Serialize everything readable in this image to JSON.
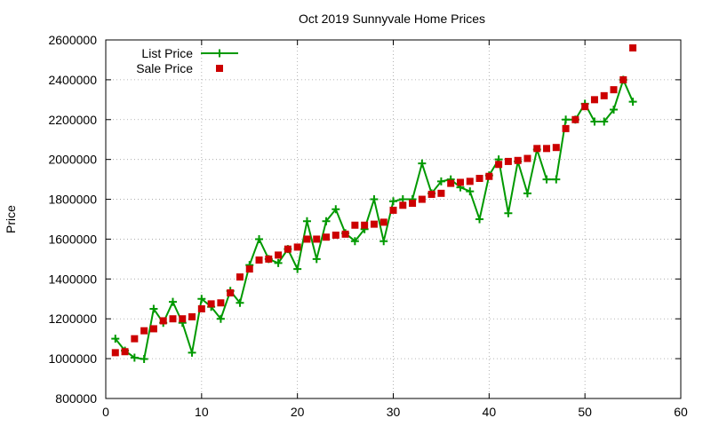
{
  "chart_data": {
    "type": "line",
    "title": "Oct 2019 Sunnyvale Home Prices",
    "xlabel": "",
    "ylabel": "Price",
    "xlim": [
      0,
      60
    ],
    "ylim": [
      800000,
      2600000
    ],
    "x_ticks": [
      0,
      10,
      20,
      30,
      40,
      50,
      60
    ],
    "y_ticks": [
      800000,
      1000000,
      1200000,
      1400000,
      1600000,
      1800000,
      2000000,
      2200000,
      2400000,
      2600000
    ],
    "x_tick_labels": [
      "0",
      "10",
      "20",
      "30",
      "40",
      "50",
      "60"
    ],
    "y_tick_labels": [
      "800000",
      "1000000",
      "1200000",
      "1400000",
      "1600000",
      "1800000",
      "2000000",
      "2200000",
      "2400000",
      "2600000"
    ],
    "grid": true,
    "legend_position": "top-left",
    "series": [
      {
        "name": "List Price",
        "style": "line-with-plus",
        "color": "#009900",
        "x": [
          1,
          2,
          3,
          4,
          5,
          6,
          7,
          8,
          9,
          10,
          11,
          12,
          13,
          14,
          15,
          16,
          17,
          18,
          19,
          20,
          21,
          22,
          23,
          24,
          25,
          26,
          27,
          28,
          29,
          30,
          31,
          32,
          33,
          34,
          35,
          36,
          37,
          38,
          39,
          40,
          41,
          42,
          43,
          44,
          45,
          46,
          47,
          48,
          49,
          50,
          51,
          52,
          53,
          54,
          55
        ],
        "values": [
          1100000,
          1040000,
          1005000,
          998000,
          1250000,
          1180000,
          1285000,
          1180000,
          1030000,
          1300000,
          1260000,
          1200000,
          1340000,
          1280000,
          1470000,
          1600000,
          1500000,
          1480000,
          1550000,
          1450000,
          1690000,
          1500000,
          1690000,
          1750000,
          1630000,
          1590000,
          1650000,
          1800000,
          1590000,
          1790000,
          1800000,
          1800000,
          1980000,
          1830000,
          1890000,
          1900000,
          1860000,
          1840000,
          1700000,
          1920000,
          2000000,
          1730000,
          1990000,
          1830000,
          2050000,
          1900000,
          1900000,
          2200000,
          2200000,
          2280000,
          2190000,
          2190000,
          2250000,
          2400000,
          2290000
        ]
      },
      {
        "name": "Sale Price",
        "style": "square-markers",
        "color": "#cc0000",
        "x": [
          1,
          2,
          3,
          4,
          5,
          6,
          7,
          8,
          9,
          10,
          11,
          12,
          13,
          14,
          15,
          16,
          17,
          18,
          19,
          20,
          21,
          22,
          23,
          24,
          25,
          26,
          27,
          28,
          29,
          30,
          31,
          32,
          33,
          34,
          35,
          36,
          37,
          38,
          39,
          40,
          41,
          42,
          43,
          44,
          45,
          46,
          47,
          48,
          49,
          50,
          51,
          52,
          53,
          54,
          55
        ],
        "values": [
          1030000,
          1035000,
          1100000,
          1140000,
          1150000,
          1190000,
          1200000,
          1200000,
          1210000,
          1250000,
          1275000,
          1280000,
          1330000,
          1410000,
          1450000,
          1495000,
          1500000,
          1520000,
          1550000,
          1560000,
          1600000,
          1600000,
          1610000,
          1620000,
          1625000,
          1670000,
          1670000,
          1675000,
          1685000,
          1745000,
          1770000,
          1780000,
          1800000,
          1825000,
          1830000,
          1880000,
          1885000,
          1890000,
          1905000,
          1915000,
          1975000,
          1990000,
          1995000,
          2005000,
          2055000,
          2055000,
          2060000,
          2155000,
          2200000,
          2265000,
          2300000,
          2320000,
          2350000,
          2400000,
          2560000
        ]
      }
    ]
  }
}
